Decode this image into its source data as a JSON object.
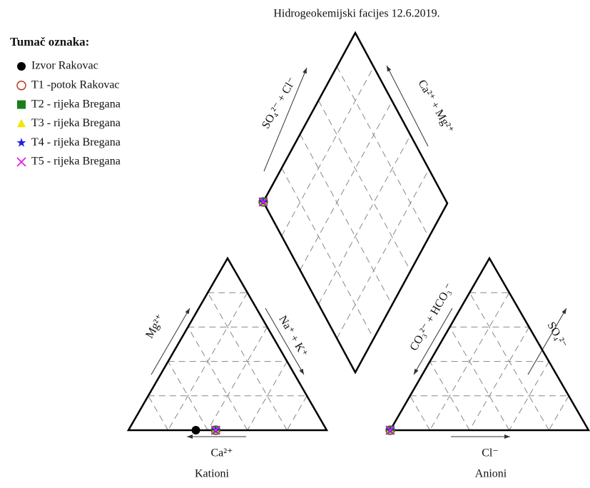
{
  "chart_data": {
    "type": "piper",
    "title": "Hidrogeokemijski facijes 12.6.2019.",
    "legend_title": "Tumač oznaka:",
    "cation_labels": {
      "mg": "Mg²⁺",
      "nak": "Na⁺ + K⁺",
      "ca": "Ca²⁺",
      "name": "Kationi"
    },
    "anion_labels": {
      "hco3": "CO₃²⁻ + HCO₃⁻",
      "so4": "SO₄²⁻",
      "cl": "Cl⁻",
      "name": "Anioni"
    },
    "diamond_labels": {
      "so4cl": "SO₄²⁻ + Cl⁻",
      "camg": "Ca²⁺ + Mg²⁺"
    },
    "grid_ticks": [
      20,
      40,
      60,
      80
    ],
    "series": [
      {
        "name": "Izvor Rakovac",
        "color": "#000000",
        "marker": "filled-circle",
        "cations": [
          66,
          34,
          0
        ],
        "anions": [
          100,
          0,
          0
        ]
      },
      {
        "name": "T1 -potok Rakovac",
        "color": "#c0392b",
        "marker": "open-circle",
        "cations": [
          56,
          44,
          0
        ],
        "anions": [
          100,
          0,
          0
        ]
      },
      {
        "name": "T2 - rijeka Bregana",
        "color": "#1a7f1a",
        "marker": "square",
        "cations": [
          56,
          44,
          0
        ],
        "anions": [
          100,
          0,
          0
        ]
      },
      {
        "name": "T3 - rijeka Bregana",
        "color": "#f2e600",
        "marker": "triangle",
        "cations": [
          56,
          44,
          0
        ],
        "anions": [
          100,
          0,
          0
        ]
      },
      {
        "name": "T4 - rijeka Bregana",
        "color": "#1f1fe0",
        "marker": "star",
        "cations": [
          56,
          44,
          0
        ],
        "anions": [
          100,
          0,
          0
        ]
      },
      {
        "name": "T5 - rijeka Bregana",
        "color": "#e020e0",
        "marker": "cross",
        "cations": [
          56,
          44,
          0
        ],
        "anions": [
          100,
          0,
          0
        ]
      }
    ]
  }
}
